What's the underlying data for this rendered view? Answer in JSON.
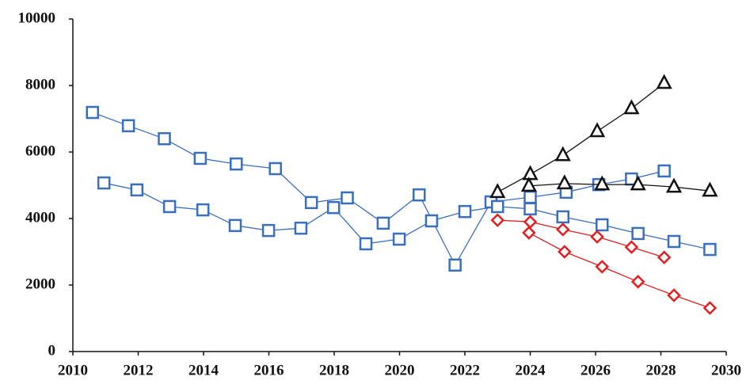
{
  "chart_data": {
    "type": "line",
    "xlim": [
      2010,
      2030
    ],
    "xticks": [
      2010,
      2012,
      2014,
      2016,
      2018,
      2020,
      2022,
      2024,
      2026,
      2028,
      2030
    ],
    "ylim": [
      0,
      10000
    ],
    "yticks": [
      0,
      2000,
      4000,
      6000,
      8000,
      10000
    ],
    "grid": false,
    "series": [
      {
        "color": "#3a6fbf",
        "marker": "square",
        "x": [
          2010.6,
          2011.7,
          2012.8,
          2013.9,
          2015.0,
          2016.2,
          2017.3,
          2018.4,
          2019.5,
          2020.6,
          2021.7,
          2022.8,
          2024.0,
          2025.1,
          2026.1,
          2027.1,
          2028.1
        ],
        "values": [
          7190,
          6790,
          6400,
          5810,
          5640,
          5500,
          4480,
          4620,
          3860,
          4710,
          2600,
          4500,
          4640,
          4790,
          5020,
          5190,
          5430
        ]
      },
      {
        "color": "#3a6fbf",
        "marker": "square",
        "x": [
          2010.95,
          2011.96,
          2012.96,
          2013.98,
          2014.97,
          2015.99,
          2016.98,
          2017.98,
          2018.97,
          2019.99,
          2020.98,
          2022.0,
          2023.0,
          2024.0,
          2025.0,
          2026.2,
          2027.3,
          2028.4,
          2029.5
        ],
        "values": [
          5070,
          4860,
          4360,
          4260,
          3790,
          3640,
          3710,
          4330,
          3240,
          3380,
          3930,
          4210,
          4360,
          4290,
          4050,
          3810,
          3550,
          3310,
          3070
        ]
      },
      {
        "color": "#111111",
        "marker": "triangle",
        "x": [
          2023.0,
          2024.0,
          2025.0,
          2026.05,
          2027.1,
          2028.1
        ],
        "values": [
          4790,
          5330,
          5900,
          6620,
          7310,
          8070
        ]
      },
      {
        "color": "#111111",
        "marker": "triangle",
        "x": [
          2023.96,
          2025.05,
          2026.2,
          2027.3,
          2028.4,
          2029.5
        ],
        "values": [
          4980,
          5050,
          5020,
          5020,
          4950,
          4830
        ]
      },
      {
        "color": "#e02020",
        "marker": "diamond",
        "x": [
          2023.0,
          2024.0,
          2025.0,
          2026.05,
          2027.1,
          2028.1
        ],
        "values": [
          3950,
          3900,
          3670,
          3450,
          3140,
          2830
        ]
      },
      {
        "color": "#e02020",
        "marker": "diamond",
        "x": [
          2023.96,
          2025.05,
          2026.2,
          2027.3,
          2028.4,
          2029.5
        ],
        "values": [
          3570,
          3000,
          2550,
          2100,
          1690,
          1310
        ]
      }
    ]
  }
}
